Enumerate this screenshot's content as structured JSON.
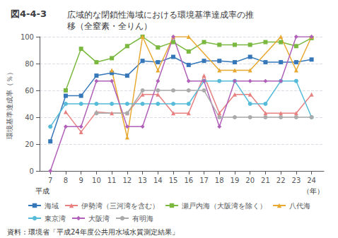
{
  "chart_data": {
    "type": "line",
    "title": "図4-4-3",
    "subtitle": "広域的な閉鎖性海域における環境基準達成率の推\n移（全窒素・全りん）",
    "ylabel": "環境基準達成率（％）",
    "xlabel": "（年）",
    "annotations": [
      "平成",
      "資料：環境省「平成24年度公共用水域水質測定結果」"
    ],
    "x": [
      7,
      8,
      9,
      10,
      11,
      12,
      13,
      14,
      15,
      16,
      17,
      18,
      19,
      20,
      21,
      22,
      23,
      24
    ],
    "xlim": [
      6.3,
      24.8
    ],
    "xticks": [
      7,
      8,
      9,
      10,
      11,
      12,
      13,
      14,
      15,
      16,
      17,
      18,
      19,
      20,
      21,
      22,
      23,
      24
    ],
    "ylim": [
      0,
      100
    ],
    "yticks": [
      0,
      20,
      40,
      60,
      80,
      100
    ],
    "grid": true,
    "legend": "bottom",
    "series": [
      {
        "name": "海域",
        "color": "#3577b8",
        "marker": "square",
        "line_style": "solid",
        "values": [
          22,
          56,
          56,
          71,
          73,
          71,
          82,
          81,
          85,
          79,
          82,
          82,
          81,
          85,
          81,
          81,
          81,
          83
        ]
      },
      {
        "name": "伊勢湾（三河湾を含む）",
        "color": "#e88080",
        "marker": "triangle",
        "line_style": "solid",
        "values": [
          null,
          44,
          29,
          44,
          43,
          43,
          57,
          57,
          43,
          43,
          71,
          43,
          57,
          57,
          43,
          43,
          43,
          57
        ]
      },
      {
        "name": "瀬戸内海（大阪湾を除く）",
        "color": "#7ab840",
        "marker": "square",
        "line_style": "solid",
        "values": [
          null,
          60,
          91,
          81,
          84,
          93,
          100,
          92,
          96,
          89,
          96,
          94,
          94,
          94,
          96,
          96,
          93,
          99
        ]
      },
      {
        "name": "八代海",
        "color": "#e8a830",
        "marker": "triangle",
        "line_style": "solid",
        "values": [
          null,
          null,
          null,
          null,
          75,
          25,
          100,
          75,
          100,
          100,
          null,
          75,
          75,
          75,
          null,
          100,
          75,
          100
        ]
      },
      {
        "name": "東京湾",
        "color": "#55bbd8",
        "marker": "circle",
        "line_style": "solid",
        "values": [
          33,
          50,
          50,
          50,
          50,
          50,
          50,
          50,
          50,
          50,
          67,
          67,
          67,
          50,
          50,
          67,
          67,
          40
        ]
      },
      {
        "name": "大阪湾",
        "color": "#b060b8",
        "marker": "diamond",
        "line_style": "solid",
        "values": [
          0,
          33,
          33,
          67,
          67,
          33,
          33,
          67,
          100,
          67,
          67,
          33,
          67,
          67,
          67,
          67,
          100,
          100
        ]
      },
      {
        "name": "有明海",
        "color": "#aaaaaa",
        "marker": "circle",
        "line_style": "solid",
        "values": [
          null,
          null,
          null,
          43,
          null,
          43,
          60,
          60,
          60,
          60,
          60,
          40,
          40,
          40,
          40,
          40,
          40,
          40
        ]
      }
    ]
  }
}
